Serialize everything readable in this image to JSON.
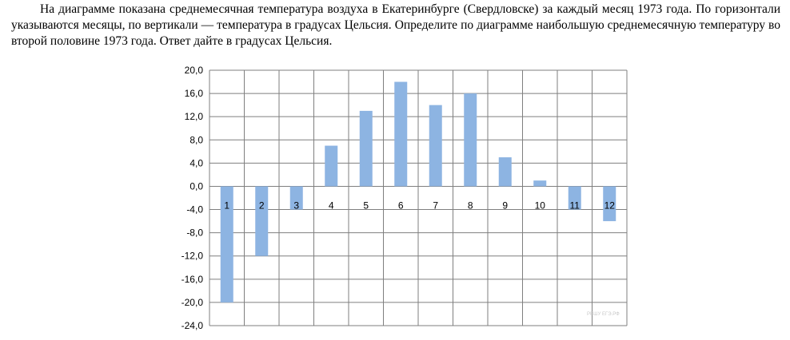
{
  "problem": {
    "text": "На диаграмме показана среднемесячная температура воздуха в Екатеринбурге (Свердловске) за каждый месяц 1973 года. По горизонтали указываются месяцы, по вертикали — температура в градусах Цельсия. Определите по диаграмме наибольшую среднемесячную температуру во второй половине 1973 года. Ответ дайте в градусах Цельсия."
  },
  "watermark": "РЕШУ ЕГЭ.РФ",
  "colors": {
    "bar": "#8DB4E2",
    "grid": "#7f7f7f",
    "axis": "#000000"
  },
  "chart_data": {
    "type": "bar",
    "categories": [
      "1",
      "2",
      "3",
      "4",
      "5",
      "6",
      "7",
      "8",
      "9",
      "10",
      "11",
      "12"
    ],
    "values": [
      -20,
      -12,
      -4,
      7,
      13,
      18,
      14,
      16,
      5,
      1,
      -4,
      -6
    ],
    "title": "",
    "xlabel": "",
    "ylabel": "",
    "ylim": [
      -24,
      20
    ],
    "yticks": [
      "20,0",
      "16,0",
      "12,0",
      "8,0",
      "4,0",
      "0,0",
      "-4,0",
      "-8,0",
      "-12,0",
      "-16,0",
      "-20,0",
      "-24,0"
    ],
    "grid": true,
    "legend": "none"
  }
}
